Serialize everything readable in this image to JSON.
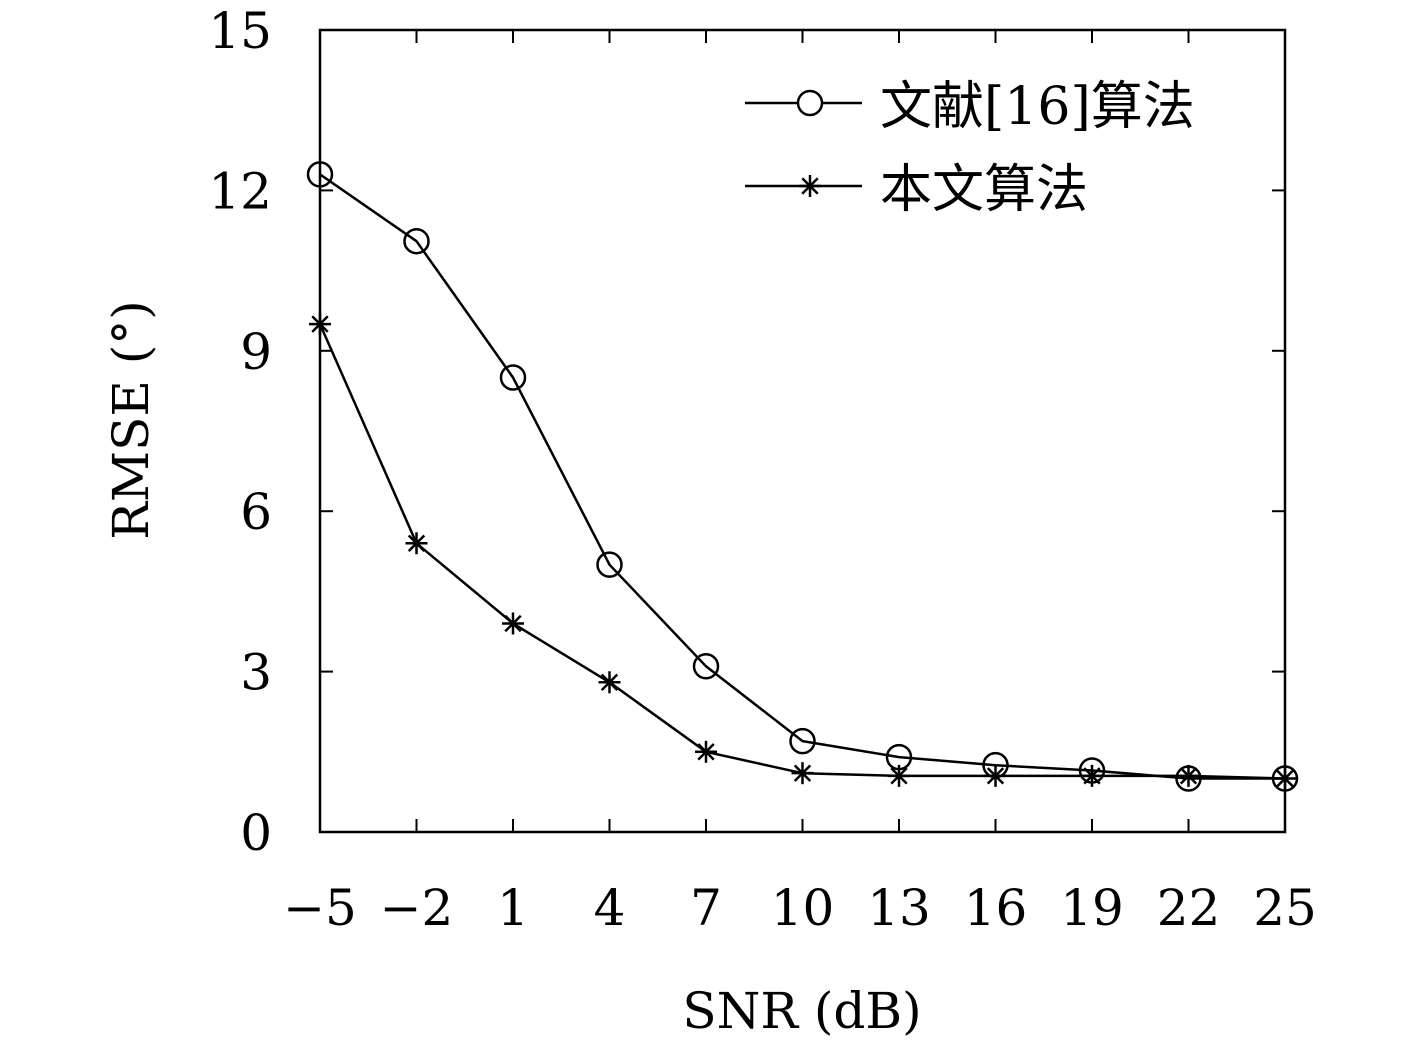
{
  "chart_data": {
    "type": "line",
    "xlabel": "SNR (dB)",
    "ylabel": "RMSE (°)",
    "x": [
      -5,
      -2,
      1,
      4,
      7,
      10,
      13,
      16,
      19,
      22,
      25
    ],
    "x_tick_labels": [
      "−5",
      "−2",
      "1",
      "4",
      "7",
      "10",
      "13",
      "16",
      "19",
      "22",
      "25"
    ],
    "y_ticks": [
      0,
      3,
      6,
      9,
      12,
      15
    ],
    "y_tick_labels": [
      "0",
      "3",
      "6",
      "9",
      "12",
      "15"
    ],
    "xlim": [
      -5,
      25
    ],
    "ylim": [
      0,
      15
    ],
    "grid": false,
    "legend_position": "top-right",
    "series": [
      {
        "name": "文献[16]算法",
        "marker": "circle",
        "color": "#000000",
        "values": [
          12.3,
          11.05,
          8.5,
          5.0,
          3.1,
          1.7,
          1.4,
          1.25,
          1.15,
          1.0,
          1.0
        ]
      },
      {
        "name": "本文算法",
        "marker": "star",
        "color": "#000000",
        "values": [
          9.5,
          5.4,
          3.9,
          2.8,
          1.5,
          1.1,
          1.05,
          1.05,
          1.05,
          1.05,
          1.0
        ]
      }
    ]
  }
}
